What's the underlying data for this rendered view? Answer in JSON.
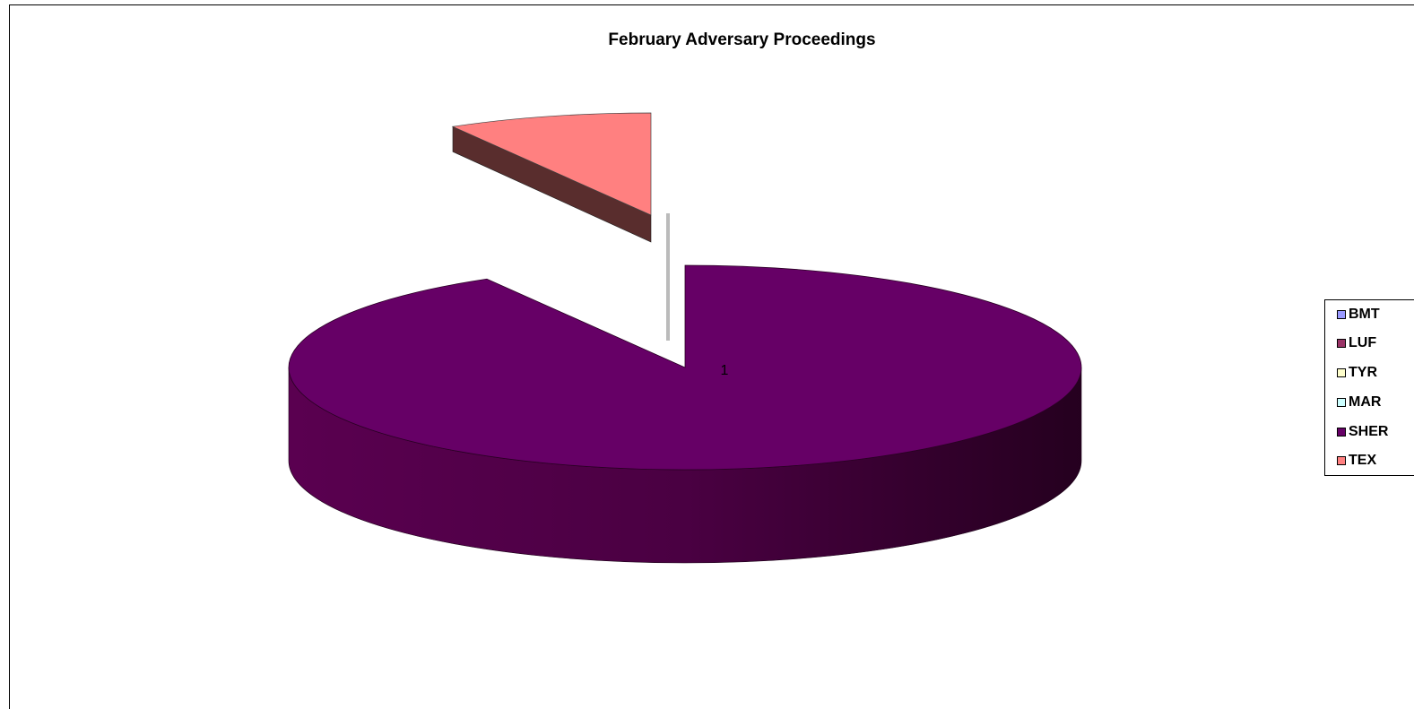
{
  "chart_data": {
    "type": "pie",
    "title": "February Adversary Proceedings",
    "categories": [
      "BMT",
      "LUF",
      "TYR",
      "MAR",
      "SHER",
      "TEX"
    ],
    "values": [
      0,
      0,
      0,
      0,
      11,
      1
    ],
    "data_labels": [
      "",
      "",
      "",
      "",
      "",
      "1"
    ],
    "colors": [
      "#9999FF",
      "#993366",
      "#FFFFCC",
      "#CCFFFF",
      "#660066",
      "#FF8080"
    ],
    "legend": "right",
    "three_d": true
  }
}
